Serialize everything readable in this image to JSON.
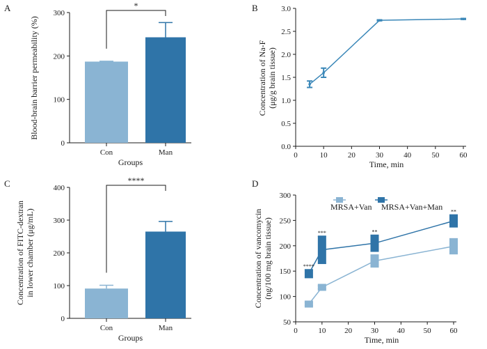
{
  "chart_data": [
    {
      "panel": "A",
      "type": "bar",
      "categories": [
        "Con",
        "Man"
      ],
      "values": [
        187,
        243
      ],
      "errors": [
        1,
        34
      ],
      "colors": [
        "#8ab4d3",
        "#2f74a8"
      ],
      "xlabel": "Groups",
      "ylabel": "Blood-brain barrier permeability (%)",
      "ylim": [
        0,
        300
      ],
      "yticks": [
        0,
        100,
        200,
        300
      ],
      "significance": "*",
      "grid": false
    },
    {
      "panel": "B",
      "type": "line",
      "x": [
        5,
        10,
        30,
        60
      ],
      "y": [
        1.35,
        1.6,
        2.74,
        2.77
      ],
      "errors": [
        0.07,
        0.1,
        0.01,
        0.01
      ],
      "color": "#3a87b8",
      "xlabel": "Time, min",
      "ylabel_lines": [
        "Concentration of Na-F",
        "(μg/g brain tissue)"
      ],
      "xlim": [
        0,
        60
      ],
      "xticks": [
        0,
        10,
        20,
        30,
        40,
        50,
        60
      ],
      "ylim": [
        0,
        3.0
      ],
      "yticks": [
        "0.0",
        "0.5",
        "1.0",
        "1.5",
        "2.0",
        "2.5",
        "3.0"
      ],
      "grid": false
    },
    {
      "panel": "C",
      "type": "bar",
      "categories": [
        "Con",
        "Man"
      ],
      "values": [
        91,
        265
      ],
      "errors": [
        10,
        31
      ],
      "colors": [
        "#8ab4d3",
        "#2f74a8"
      ],
      "xlabel": "Groups",
      "ylabel_lines": [
        "Concentration of FITC-dextran",
        "in lower chamber (μg/mL)"
      ],
      "ylim": [
        0,
        400
      ],
      "yticks": [
        0,
        100,
        200,
        300,
        400
      ],
      "significance": "****",
      "grid": false
    },
    {
      "panel": "D",
      "type": "line",
      "x": [
        5,
        10,
        30,
        60
      ],
      "series": [
        {
          "name": "MRSA+Van",
          "y": [
            85,
            118,
            170,
            199
          ],
          "errors": [
            3,
            3,
            12,
            15
          ],
          "color": "#8ab4d3"
        },
        {
          "name": "MRSA+Van+Man",
          "y": [
            145,
            192,
            205,
            249
          ],
          "errors": [
            8,
            27,
            16,
            12
          ],
          "color": "#2f74a8"
        }
      ],
      "significance": [
        "****",
        "***",
        "**",
        "**"
      ],
      "xlabel": "Time, min",
      "ylabel_lines": [
        "Concentration of vancomycin",
        "(ng/100 mg brain tissue)"
      ],
      "xlim": [
        0,
        60
      ],
      "xticks": [
        0,
        10,
        20,
        30,
        40,
        50,
        60
      ],
      "ylim": [
        50,
        300
      ],
      "yticks": [
        50,
        100,
        150,
        200,
        250,
        300
      ],
      "legend_position": "top",
      "grid": false
    }
  ]
}
